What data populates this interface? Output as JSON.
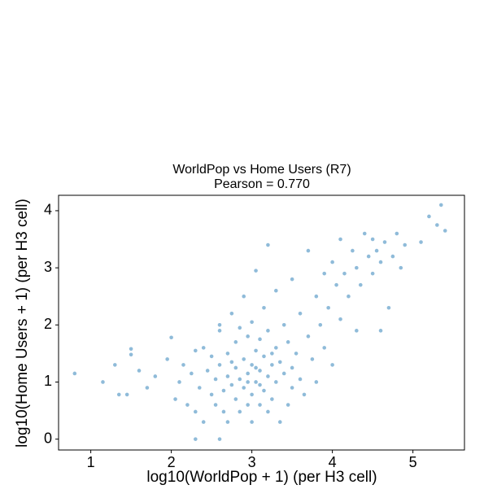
{
  "chart_data": {
    "type": "scatter",
    "title": "WorldPop vs Home Users (R7)",
    "subtitle": "Pearson = 0.770",
    "xlabel": "log10(WorldPop + 1) (per H3 cell)",
    "ylabel": "log10(Home Users + 1) (per H3 cell)",
    "color": "#1f77b4",
    "xlim": [
      0.6,
      5.64
    ],
    "ylim": [
      -0.19,
      4.27
    ],
    "xticks": [
      1,
      2,
      3,
      4,
      5
    ],
    "yticks": [
      0,
      1,
      2,
      3,
      4
    ],
    "x": [
      0.8,
      1.15,
      1.3,
      1.35,
      1.45,
      1.5,
      1.5,
      1.6,
      1.7,
      1.8,
      1.95,
      2.0,
      2.05,
      2.1,
      2.15,
      2.2,
      2.25,
      2.3,
      2.3,
      2.35,
      2.4,
      2.4,
      2.45,
      2.5,
      2.5,
      2.55,
      2.55,
      2.6,
      2.6,
      2.6,
      2.65,
      2.65,
      2.7,
      2.7,
      2.7,
      2.75,
      2.75,
      2.8,
      2.8,
      2.8,
      2.85,
      2.85,
      2.9,
      2.9,
      2.9,
      2.95,
      2.95,
      2.95,
      3.0,
      3.0,
      3.0,
      3.0,
      3.05,
      3.05,
      3.05,
      3.1,
      3.1,
      3.1,
      3.15,
      3.15,
      3.15,
      3.2,
      3.2,
      3.2,
      3.25,
      3.25,
      3.3,
      3.3,
      3.3,
      3.35,
      3.35,
      3.4,
      3.4,
      3.45,
      3.45,
      3.5,
      3.5,
      3.5,
      3.55,
      3.6,
      3.6,
      3.65,
      3.7,
      3.7,
      3.75,
      3.8,
      3.8,
      3.85,
      3.9,
      3.9,
      3.95,
      4.0,
      4.0,
      4.05,
      4.1,
      4.1,
      4.15,
      4.2,
      4.25,
      4.3,
      4.3,
      4.35,
      4.4,
      4.45,
      4.5,
      4.5,
      4.55,
      4.6,
      4.6,
      4.65,
      4.7,
      4.75,
      4.8,
      4.85,
      4.9,
      5.1,
      5.2,
      5.3,
      5.35,
      5.4,
      3.2,
      2.3,
      2.6,
      2.85,
      3.05,
      2.95,
      3.1,
      3.25,
      2.75
    ],
    "values": [
      1.15,
      1.0,
      1.3,
      0.78,
      0.78,
      1.48,
      1.58,
      1.2,
      0.9,
      1.1,
      1.4,
      1.78,
      0.7,
      1.0,
      1.3,
      0.6,
      1.15,
      0.0,
      0.48,
      0.9,
      1.6,
      0.3,
      1.2,
      0.78,
      1.45,
      0.6,
      1.05,
      0.0,
      1.9,
      1.3,
      0.48,
      0.85,
      1.1,
      1.5,
      0.3,
      2.2,
      0.95,
      1.25,
      0.7,
      1.7,
      1.05,
      0.48,
      1.4,
      0.9,
      2.5,
      1.15,
      0.6,
      1.8,
      1.3,
      0.78,
      0.3,
      2.05,
      1.0,
      1.55,
      2.95,
      1.2,
      0.6,
      1.75,
      0.85,
      1.45,
      2.3,
      1.1,
      0.48,
      1.9,
      1.3,
      0.7,
      1.6,
      1.0,
      2.6,
      0.3,
      1.35,
      1.15,
      2.0,
      0.6,
      1.7,
      1.25,
      0.9,
      2.8,
      1.5,
      2.2,
      1.05,
      0.78,
      1.8,
      3.3,
      1.4,
      2.5,
      1.0,
      2.0,
      1.6,
      2.9,
      2.3,
      1.3,
      3.1,
      2.7,
      3.5,
      2.1,
      2.9,
      2.5,
      3.3,
      1.9,
      3.0,
      2.7,
      3.6,
      3.2,
      2.9,
      3.5,
      3.3,
      1.9,
      3.1,
      3.45,
      2.3,
      3.2,
      3.6,
      3.0,
      3.4,
      3.45,
      3.9,
      3.75,
      4.1,
      3.65,
      3.4,
      1.55,
      2.0,
      1.95,
      1.25,
      1.0,
      0.95,
      1.5,
      1.35
    ]
  }
}
